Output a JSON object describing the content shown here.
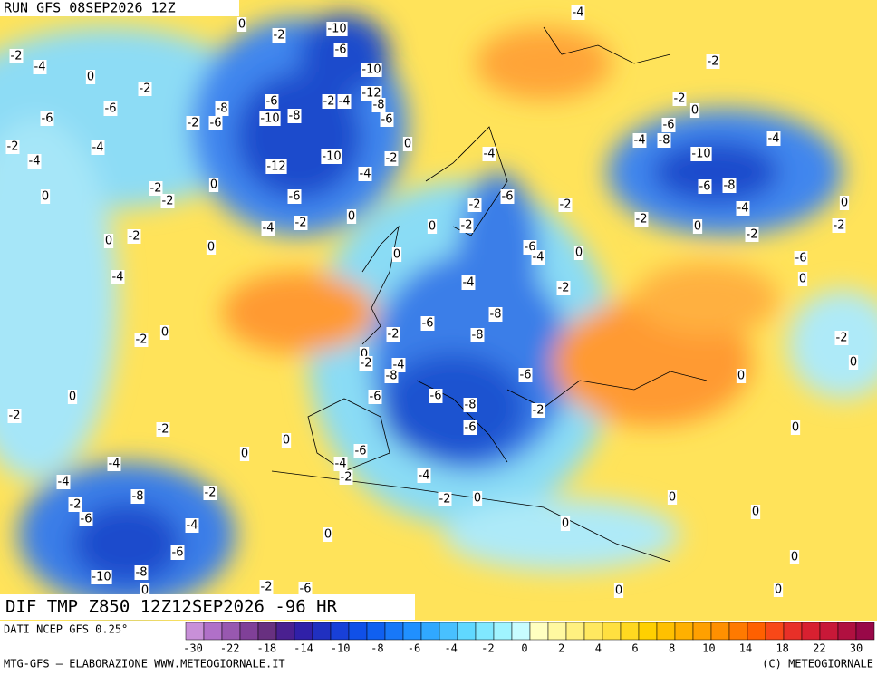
{
  "header": {
    "run": "RUN GFS 08SEP2026 12Z"
  },
  "map": {
    "title": "DIF TMP Z850 12Z12SEP2026 -96 HR",
    "contour_labels": [
      "0",
      "-4",
      "-2",
      "-10",
      "-2",
      "-4",
      "-6",
      "0",
      "-2",
      "-10",
      "-2",
      "-12",
      "-6",
      "-2",
      "0",
      "-6",
      "-8",
      "-2",
      "-4",
      "-8",
      "-6",
      "-2",
      "-6",
      "-10",
      "-8",
      "-6",
      "-6",
      "-2",
      "-4",
      "0",
      "-4",
      "-8",
      "-4",
      "-10",
      "-10",
      "-4",
      "-2",
      "-4",
      "-12",
      "-4",
      "0",
      "-2",
      "-6",
      "-8",
      "0",
      "-2",
      "-6",
      "-2",
      "-6",
      "-2",
      "0",
      "-4",
      "-2",
      "0",
      "-2",
      "-4",
      "0",
      "-2",
      "0",
      "-2",
      "0",
      "-2",
      "-2",
      "0",
      "-6",
      "-4",
      "0",
      "0",
      "-6",
      "-4",
      "-4",
      "-2",
      "0",
      "-8",
      "-6",
      "0",
      "-2",
      "-2",
      "-8",
      "-2",
      "0",
      "-2",
      "-4",
      "-8",
      "0",
      "-6",
      "0",
      "0",
      "-6",
      "-6",
      "-8",
      "-2",
      "-2",
      "-6",
      "-2",
      "0",
      "0",
      "0",
      "-6",
      "-4",
      "-4",
      "-2",
      "-4",
      "-4",
      "-2",
      "-8",
      "-2",
      "0",
      "0",
      "-2",
      "-6",
      "-4",
      "0",
      "0",
      "0",
      "-6",
      "0",
      "-10",
      "-8",
      "-2",
      "0",
      "-6",
      "0",
      "0"
    ]
  },
  "legend": {
    "source": "DATI NCEP GFS 0.25°",
    "ticks": [
      -30,
      -22,
      -18,
      -14,
      -10,
      -8,
      -6,
      -4,
      -2,
      0,
      2,
      4,
      6,
      8,
      10,
      14,
      18,
      22,
      30
    ],
    "colors": [
      "#c890d8",
      "#b070c8",
      "#9858b0",
      "#804098",
      "#683080",
      "#4a2090",
      "#3020a8",
      "#2030c0",
      "#1840d8",
      "#1050e8",
      "#1060f0",
      "#1878f8",
      "#2090ff",
      "#30a8ff",
      "#48c0ff",
      "#60d8ff",
      "#80e8ff",
      "#a0f4ff",
      "#c8fcff",
      "#ffffc0",
      "#fff8a0",
      "#fff080",
      "#ffe860",
      "#ffe040",
      "#ffd820",
      "#ffd000",
      "#ffc000",
      "#ffb000",
      "#ffa000",
      "#ff9000",
      "#ff7a00",
      "#ff6000",
      "#f84818",
      "#e83028",
      "#d82030",
      "#c81838",
      "#b01040",
      "#980848"
    ]
  },
  "footer": {
    "left": "MTG-GFS — ELABORAZIONE WWW.METEOGIORNALE.IT",
    "right": "(C) METEOGIORNALE"
  }
}
